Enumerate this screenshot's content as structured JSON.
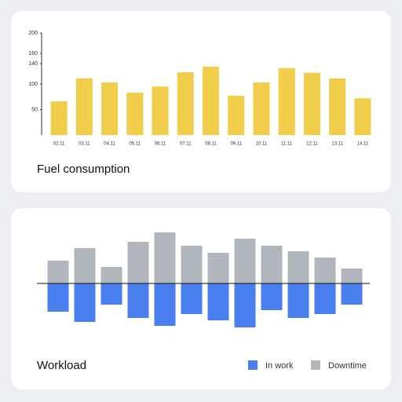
{
  "chart_data": [
    {
      "type": "bar",
      "title": "Fuel consumption",
      "categories": [
        "02.11",
        "03.11",
        "04.11",
        "05.11",
        "06.11",
        "07.11",
        "08.11",
        "09.11",
        "10.11",
        "11.11",
        "12.11",
        "13.11",
        "14.11"
      ],
      "values": [
        66,
        111,
        103,
        83,
        95,
        123,
        134,
        77,
        103,
        131,
        122,
        111,
        72
      ],
      "color": "#f0cd4a",
      "ylim": [
        0,
        200
      ],
      "yticks": [
        50,
        100,
        140,
        160,
        200
      ]
    },
    {
      "type": "diverging_bar",
      "title": "Workload",
      "series": [
        {
          "name": "In work",
          "color": "#4a7ff0",
          "direction": "down",
          "values": [
            36,
            49,
            27,
            44,
            54,
            39,
            47,
            56,
            34,
            44,
            39,
            27
          ]
        },
        {
          "name": "Downtime",
          "color": "#b1b5bc",
          "direction": "up",
          "values": [
            29,
            45,
            21,
            53,
            65,
            48,
            39,
            57,
            48,
            41,
            33,
            19
          ]
        }
      ]
    }
  ]
}
